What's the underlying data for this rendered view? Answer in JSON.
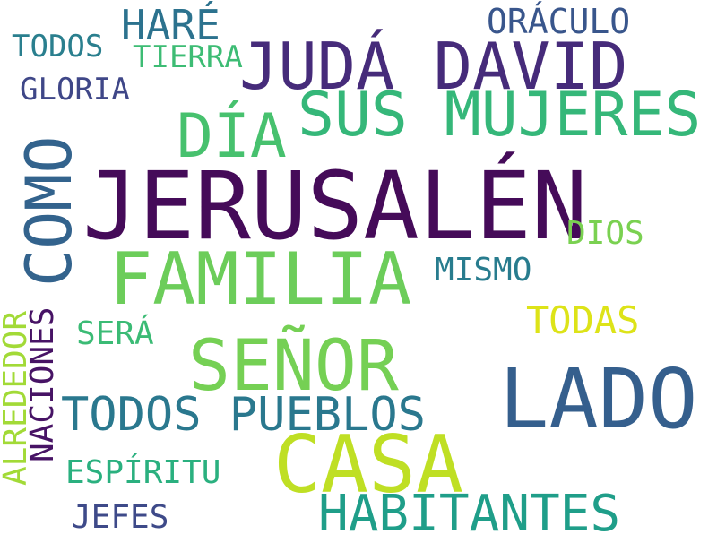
{
  "words": {
    "jerusalen": {
      "text": "JERUSALÉN",
      "color": "#450b59"
    },
    "familia": {
      "text": "FAMILIA",
      "color": "#6ccd5a"
    },
    "lado": {
      "text": "LADO",
      "color": "#355f8d"
    },
    "casa": {
      "text": "CASA",
      "color": "#bfdf24"
    },
    "senor": {
      "text": "SEÑOR",
      "color": "#75d054"
    },
    "juda_david": {
      "text": "JUDÁ DAVID",
      "color": "#462b7a"
    },
    "sus_mujeres": {
      "text": "SUS MUJERES",
      "color": "#35b779"
    },
    "dia": {
      "text": "DÍA",
      "color": "#47c16e"
    },
    "como": {
      "text": "COMO",
      "color": "#33638d"
    },
    "todos_pueblos": {
      "text": "TODOS PUEBLOS",
      "color": "#2a788e"
    },
    "habitantes": {
      "text": "HABITANTES",
      "color": "#1f9e89"
    },
    "hare": {
      "text": "HARÉ",
      "color": "#2c728e"
    },
    "oraculo": {
      "text": "ORÁCULO",
      "color": "#39568c"
    },
    "todos_top": {
      "text": "TODOS",
      "color": "#2a7f8e"
    },
    "tierra": {
      "text": "TIERRA",
      "color": "#3dbc74"
    },
    "gloria": {
      "text": "GLORIA",
      "color": "#3f4788"
    },
    "dios": {
      "text": "DIOS",
      "color": "#7ad151"
    },
    "mismo": {
      "text": "MISMO",
      "color": "#287c8e"
    },
    "todas": {
      "text": "TODAS",
      "color": "#dde318"
    },
    "sera": {
      "text": "SERÁ",
      "color": "#3bbb75"
    },
    "espiritu": {
      "text": "ESPÍRITU",
      "color": "#2ab07f"
    },
    "jefes": {
      "text": "JEFES",
      "color": "#3e4a89"
    },
    "alrededor": {
      "text": "ALREDEDOR",
      "color": "#a2da37"
    },
    "naciones": {
      "text": "NACIONES",
      "color": "#471365"
    }
  }
}
